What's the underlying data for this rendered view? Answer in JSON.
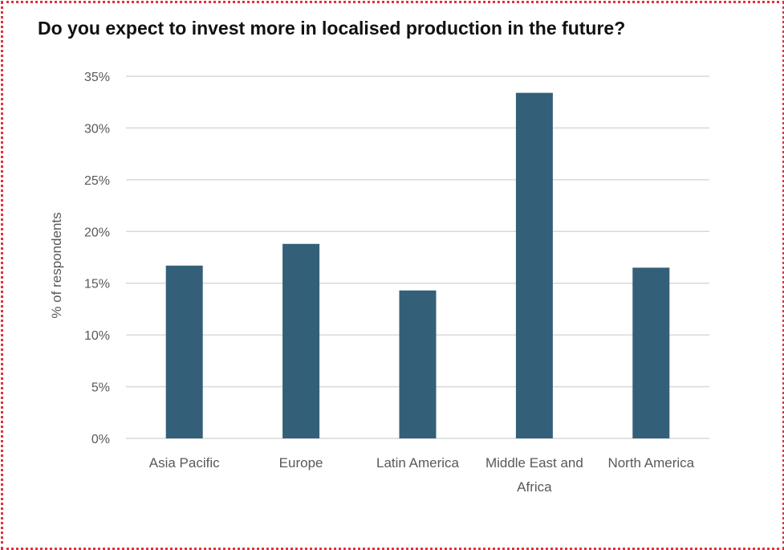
{
  "chart_data": {
    "type": "bar",
    "title": "Do you expect to invest more in localised production in the future?",
    "ylabel": "% of respondents",
    "xlabel": "",
    "categories": [
      [
        "Asia Pacific"
      ],
      [
        "Europe"
      ],
      [
        "Latin America"
      ],
      [
        "Middle East and",
        "Africa"
      ],
      [
        "North America"
      ]
    ],
    "values": [
      16.7,
      18.8,
      14.3,
      33.4,
      16.5
    ],
    "ylim": [
      0,
      35
    ],
    "yticks": [
      {
        "value": 0,
        "label": "0%"
      },
      {
        "value": 5,
        "label": "5%"
      },
      {
        "value": 10,
        "label": "10%"
      },
      {
        "value": 15,
        "label": "15%"
      },
      {
        "value": 20,
        "label": "20%"
      },
      {
        "value": 25,
        "label": "25%"
      },
      {
        "value": 30,
        "label": "30%"
      },
      {
        "value": 35,
        "label": "35%"
      }
    ],
    "grid": true,
    "legend": "none",
    "bar_color": "#336078",
    "grid_color": "#d9d9d9",
    "text_color": "#595959"
  },
  "frame": {
    "border_color": "#e0323c"
  }
}
